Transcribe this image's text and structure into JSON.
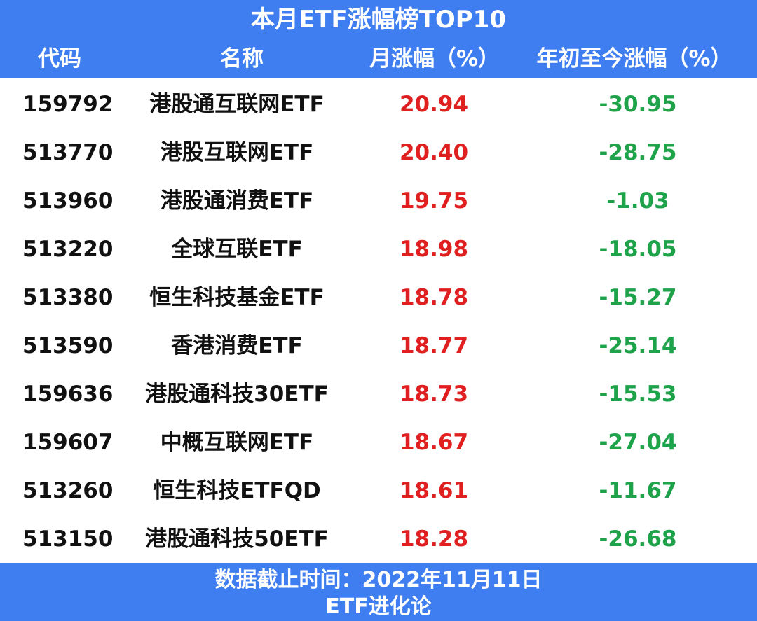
{
  "title": "本月ETF涨幅榜TOP10",
  "columns": {
    "code": "代码",
    "name": "名称",
    "month_change": "月涨幅（%）",
    "ytd_change": "年初至今涨幅（%）"
  },
  "rows": [
    {
      "code": "159792",
      "name": "港股通互联网ETF",
      "month": "20.94",
      "ytd": "-30.95"
    },
    {
      "code": "513770",
      "name": "港股互联网ETF",
      "month": "20.40",
      "ytd": "-28.75"
    },
    {
      "code": "513960",
      "name": "港股通消费ETF",
      "month": "19.75",
      "ytd": "-1.03"
    },
    {
      "code": "513220",
      "name": "全球互联ETF",
      "month": "18.98",
      "ytd": "-18.05"
    },
    {
      "code": "513380",
      "name": "恒生科技基金ETF",
      "month": "18.78",
      "ytd": "-15.27"
    },
    {
      "code": "513590",
      "name": "香港消费ETF",
      "month": "18.77",
      "ytd": "-25.14"
    },
    {
      "code": "159636",
      "name": "港股通科技30ETF",
      "month": "18.73",
      "ytd": "-15.53"
    },
    {
      "code": "159607",
      "name": "中概互联网ETF",
      "month": "18.67",
      "ytd": "-27.04"
    },
    {
      "code": "513260",
      "name": "恒生科技ETFQD",
      "month": "18.61",
      "ytd": "-11.67"
    },
    {
      "code": "513150",
      "name": "港股通科技50ETF",
      "month": "18.28",
      "ytd": "-26.68"
    }
  ],
  "footer": {
    "date_line": "数据截止时间：2022年11月11日",
    "source": "ETF进化论"
  },
  "colors": {
    "header_bg": "#3e7ef0",
    "positive": "#e02020",
    "negative": "#1ea34a"
  }
}
